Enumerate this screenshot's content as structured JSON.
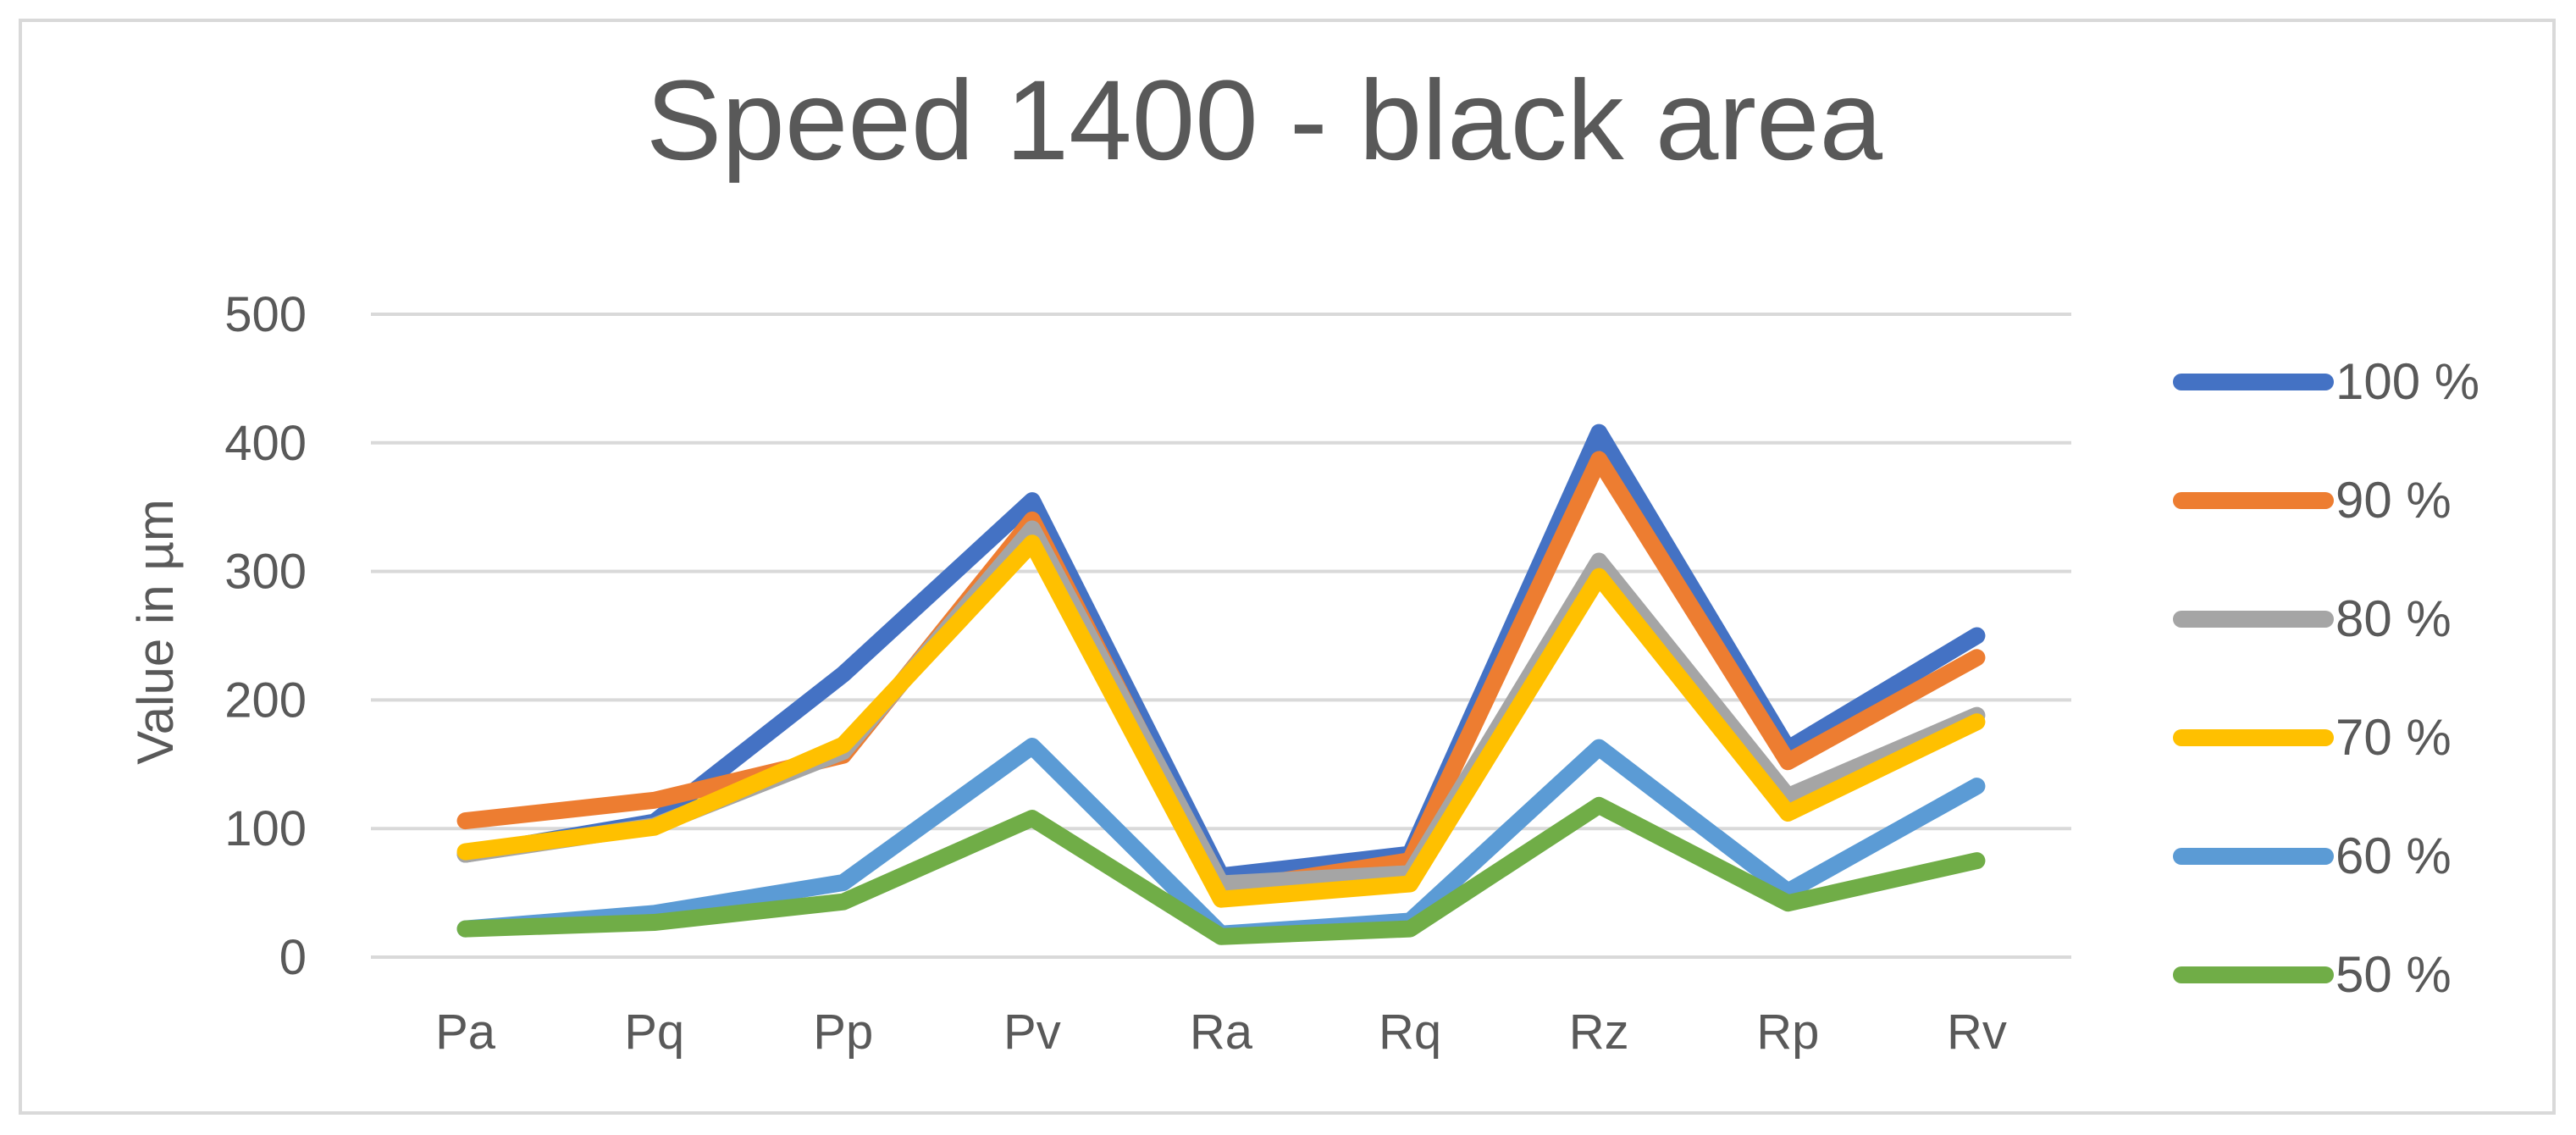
{
  "chart_data": {
    "type": "line",
    "title": "Speed 1400 - black area",
    "xlabel": "",
    "ylabel": "Value in µm",
    "ylim": [
      0,
      500
    ],
    "yticks": [
      0,
      100,
      200,
      300,
      400,
      500
    ],
    "grid": true,
    "legend_position": "right",
    "categories": [
      "Pa",
      "Pq",
      "Pp",
      "Pv",
      "Ra",
      "Rq",
      "Rz",
      "Rp",
      "Rv"
    ],
    "series": [
      {
        "name": "100 %",
        "color": "#4472C4",
        "values": [
          80,
          105,
          220,
          355,
          63,
          80,
          408,
          162,
          250
        ]
      },
      {
        "name": "90 %",
        "color": "#ED7D31",
        "values": [
          106,
          122,
          157,
          340,
          52,
          75,
          387,
          152,
          233
        ]
      },
      {
        "name": "80 %",
        "color": "#A5A5A5",
        "values": [
          80,
          102,
          160,
          333,
          57,
          65,
          308,
          125,
          188
        ]
      },
      {
        "name": "70 %",
        "color": "#FFC000",
        "values": [
          82,
          101,
          165,
          322,
          45,
          57,
          296,
          112,
          183
        ]
      },
      {
        "name": "60 %",
        "color": "#5B9BD5",
        "values": [
          22,
          34,
          58,
          164,
          18,
          28,
          163,
          51,
          133
        ]
      },
      {
        "name": "50 %",
        "color": "#70AD47",
        "values": [
          22,
          27,
          43,
          108,
          16,
          22,
          118,
          42,
          75
        ]
      }
    ]
  }
}
